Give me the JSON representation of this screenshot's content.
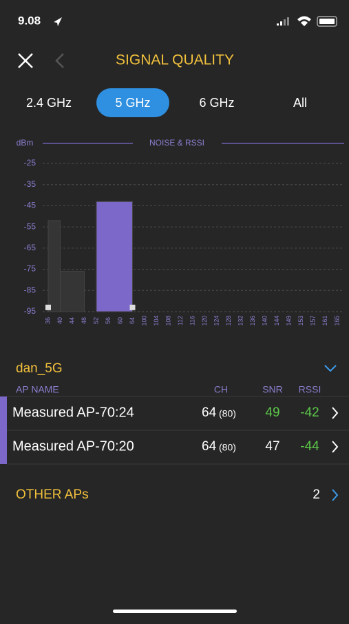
{
  "status_bar": {
    "time": "9.08"
  },
  "header": {
    "title": "SIGNAL QUALITY"
  },
  "tabs": {
    "items": [
      "2.4 GHz",
      "5 GHz",
      "6 GHz",
      "All"
    ],
    "selected": 1
  },
  "chart_data": {
    "type": "bar",
    "title": "NOISE & RSSI",
    "y_label": "dBm",
    "categories": [
      36,
      40,
      44,
      48,
      52,
      56,
      60,
      64,
      100,
      104,
      108,
      112,
      116,
      120,
      124,
      128,
      132,
      136,
      140,
      144,
      149,
      153,
      157,
      161,
      165
    ],
    "ylim": [
      -95,
      -25
    ],
    "yticks": [
      -25,
      -35,
      -45,
      -55,
      -65,
      -75,
      -85,
      -95
    ],
    "grid": true,
    "bars": [
      {
        "channels": [
          36,
          40
        ],
        "value": -52,
        "color": "#353535"
      },
      {
        "channels": [
          40,
          48
        ],
        "value": -76,
        "color": "#353535"
      },
      {
        "channels": [
          52,
          64
        ],
        "value": -43,
        "color": "#7b68c8"
      }
    ],
    "noise": [
      {
        "channel": 36,
        "value": -93
      },
      {
        "channel": 64,
        "value": -93
      }
    ]
  },
  "network": {
    "name": "dan_5G"
  },
  "table": {
    "headers": [
      "AP NAME",
      "CH",
      "SNR",
      "RSSI"
    ],
    "rows": [
      {
        "name": "Measured AP-70:24",
        "ch": "64",
        "width": "(80)",
        "snr": 49,
        "snr_color": "#5cc84a",
        "rssi": -42
      },
      {
        "name": "Measured AP-70:20",
        "ch": "64",
        "width": "(80)",
        "snr": 47,
        "snr_color": "#ffffff",
        "rssi": -44
      }
    ]
  },
  "other_aps": {
    "label": "OTHER APs",
    "count": 2
  }
}
